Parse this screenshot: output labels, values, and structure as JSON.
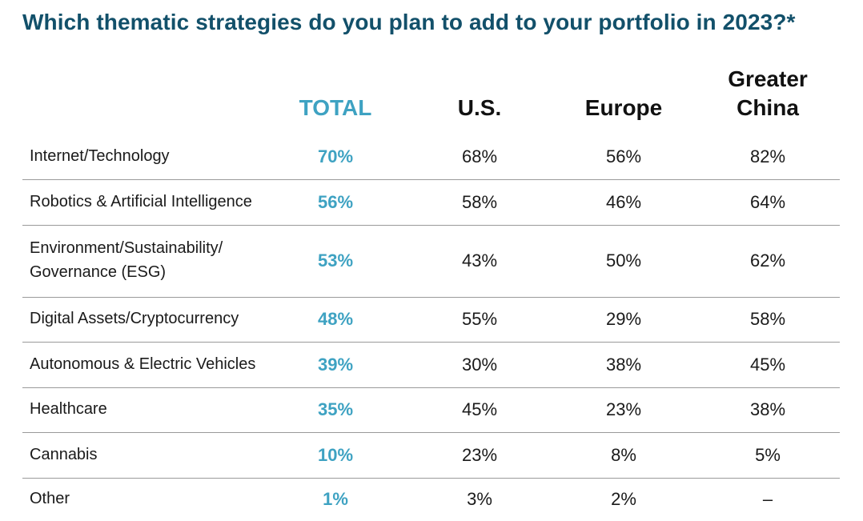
{
  "title": "Which thematic strategies do you plan to add to your portfolio in 2023?*",
  "chart_data": {
    "type": "table",
    "title": "Which thematic strategies do you plan to add to your portfolio in 2023?*",
    "columns": [
      "TOTAL",
      "U.S.",
      "Europe",
      "Greater China"
    ],
    "rows": [
      {
        "label": "Internet/Technology",
        "values": [
          "70%",
          "68%",
          "56%",
          "82%"
        ]
      },
      {
        "label": "Robotics & Artificial Intelligence",
        "values": [
          "56%",
          "58%",
          "46%",
          "64%"
        ]
      },
      {
        "label": "Environment/Sustainability/ Governance (ESG)",
        "values": [
          "53%",
          "43%",
          "50%",
          "62%"
        ]
      },
      {
        "label": "Digital Assets/Cryptocurrency",
        "values": [
          "48%",
          "55%",
          "29%",
          "58%"
        ]
      },
      {
        "label": "Autonomous & Electric Vehicles",
        "values": [
          "39%",
          "30%",
          "38%",
          "45%"
        ]
      },
      {
        "label": "Healthcare",
        "values": [
          "35%",
          "45%",
          "23%",
          "38%"
        ]
      },
      {
        "label": "Cannabis",
        "values": [
          "10%",
          "23%",
          "8%",
          "5%"
        ]
      },
      {
        "label": "Other",
        "values": [
          "1%",
          "3%",
          "2%",
          "–"
        ]
      }
    ]
  },
  "colors": {
    "title": "#12506a",
    "accent": "#3ea2c2",
    "text": "#1a1a1a",
    "rule": "#9a9a9a"
  }
}
